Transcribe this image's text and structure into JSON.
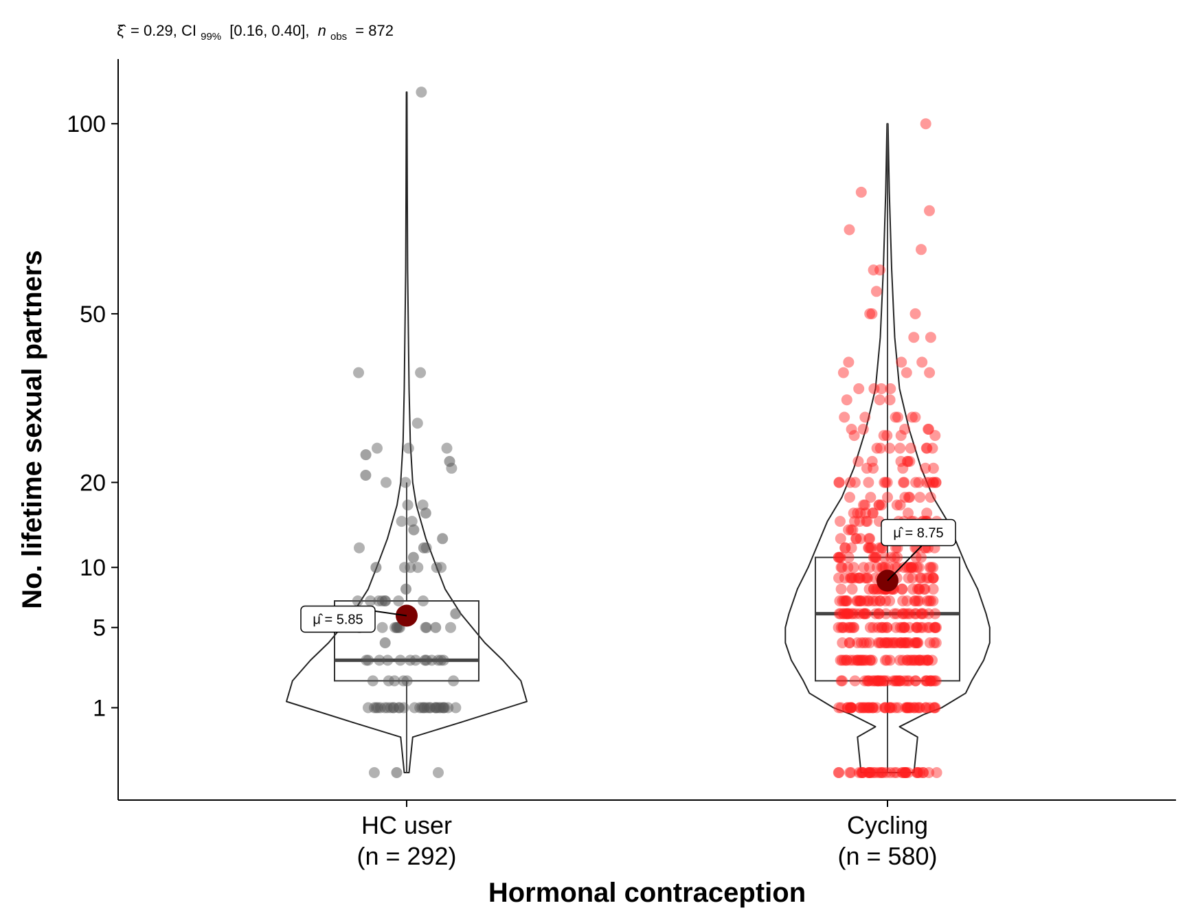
{
  "chart_data": {
    "type": "violin",
    "subtitle": "ξ̂ = 0.29, CI99% [0.16, 0.40], nobs = 872",
    "subtitle_parts": {
      "xi": "ξ̂",
      "eq1": "= 0.29, CI",
      "ci_sub": "99%",
      "mid": "[0.16, 0.40],",
      "n": "n",
      "n_sub": "obs",
      "eq2": "= 872"
    },
    "xlabel": "Hormonal contraception",
    "ylabel": "No. lifetime sexual partners",
    "y_scale": "sqrt",
    "y_ticks": [
      1,
      5,
      10,
      20,
      50,
      100
    ],
    "y_tick_labels": [
      "1",
      "5",
      "10",
      "20",
      "50",
      "100"
    ],
    "ylim": [
      0,
      120
    ],
    "grid": false,
    "legend": "none",
    "colors": {
      "HC user": "#555555",
      "Cycling": "#ff2020",
      "mean": "#7a0000"
    },
    "groups": [
      {
        "name": "HC user",
        "label_line1": "HC user",
        "label_line2": "(n = 292)",
        "n": 292,
        "mean": 5.85,
        "mean_label": "μ̂ = 5.85",
        "box": {
          "q1": 2,
          "median": 3,
          "q3": 7,
          "whisker_low": 0,
          "whisker_high": 20
        },
        "points": [
          [
            1,
            30
          ],
          [
            0,
            2
          ],
          [
            2,
            6
          ],
          [
            3,
            12
          ],
          [
            5,
            10
          ],
          [
            7,
            8
          ],
          [
            10,
            5
          ],
          [
            12,
            2
          ],
          [
            15,
            2
          ],
          [
            17,
            2
          ],
          [
            20,
            2
          ],
          [
            22,
            1
          ],
          [
            25,
            3
          ],
          [
            29,
            1
          ],
          [
            38,
            2
          ],
          [
            110,
            1
          ],
          [
            0,
            0
          ],
          [
            1,
            0
          ],
          [
            3,
            0
          ],
          [
            4,
            0
          ],
          [
            5,
            0
          ],
          [
            6,
            0
          ],
          [
            8,
            0
          ],
          [
            10,
            0
          ],
          [
            11,
            0
          ],
          [
            12,
            0
          ],
          [
            13,
            0
          ],
          [
            14,
            0
          ],
          [
            16,
            0
          ],
          [
            21,
            0
          ],
          [
            23,
            0
          ],
          [
            24,
            0
          ]
        ],
        "violin": [
          [
            0,
            0.02
          ],
          [
            0.3,
            0.05
          ],
          [
            0.6,
            0.45
          ],
          [
            1.2,
            1.0
          ],
          [
            2,
            0.95
          ],
          [
            3,
            0.8
          ],
          [
            4,
            0.65
          ],
          [
            6,
            0.45
          ],
          [
            8,
            0.32
          ],
          [
            10,
            0.25
          ],
          [
            13,
            0.16
          ],
          [
            17,
            0.08
          ],
          [
            20,
            0.05
          ],
          [
            26,
            0.03
          ],
          [
            35,
            0.02
          ],
          [
            45,
            0.015
          ],
          [
            60,
            0.008
          ],
          [
            80,
            0.005
          ],
          [
            110,
            0.002
          ]
        ]
      },
      {
        "name": "Cycling",
        "label_line1": "Cycling",
        "label_line2": "(n = 580)",
        "n": 580,
        "mean": 8.75,
        "mean_label": "μ̂ = 8.75",
        "box": {
          "q1": 2,
          "median": 6,
          "q3": 11,
          "whisker_low": 0,
          "whisker_high": 100
        },
        "points": [
          [
            0,
            40
          ],
          [
            1,
            50
          ],
          [
            2,
            40
          ],
          [
            3,
            40
          ],
          [
            4,
            35
          ],
          [
            5,
            35
          ],
          [
            6,
            35
          ],
          [
            7,
            30
          ],
          [
            8,
            28
          ],
          [
            9,
            25
          ],
          [
            10,
            25
          ],
          [
            11,
            15
          ],
          [
            12,
            18
          ],
          [
            13,
            12
          ],
          [
            14,
            10
          ],
          [
            15,
            16
          ],
          [
            16,
            8
          ],
          [
            17,
            7
          ],
          [
            18,
            8
          ],
          [
            20,
            18
          ],
          [
            22,
            5
          ],
          [
            23,
            6
          ],
          [
            25,
            8
          ],
          [
            27,
            5
          ],
          [
            28,
            5
          ],
          [
            30,
            6
          ],
          [
            33,
            3
          ],
          [
            35,
            4
          ],
          [
            38,
            3
          ],
          [
            40,
            3
          ],
          [
            45,
            2
          ],
          [
            50,
            3
          ],
          [
            55,
            1
          ],
          [
            60,
            2
          ],
          [
            65,
            1
          ],
          [
            70,
            1
          ],
          [
            75,
            1
          ],
          [
            80,
            1
          ],
          [
            100,
            1
          ]
        ],
        "violin": [
          [
            0,
            0.22
          ],
          [
            0.3,
            0.25
          ],
          [
            0.5,
            0.1
          ],
          [
            0.8,
            0.3
          ],
          [
            1,
            0.45
          ],
          [
            1.5,
            0.65
          ],
          [
            2,
            0.7
          ],
          [
            3,
            0.8
          ],
          [
            4,
            0.85
          ],
          [
            5,
            0.85
          ],
          [
            6,
            0.82
          ],
          [
            8,
            0.75
          ],
          [
            10,
            0.66
          ],
          [
            13,
            0.56
          ],
          [
            15,
            0.5
          ],
          [
            18,
            0.38
          ],
          [
            22,
            0.28
          ],
          [
            28,
            0.18
          ],
          [
            35,
            0.1
          ],
          [
            45,
            0.06
          ],
          [
            60,
            0.035
          ],
          [
            80,
            0.015
          ],
          [
            100,
            0.004
          ]
        ]
      }
    ]
  }
}
